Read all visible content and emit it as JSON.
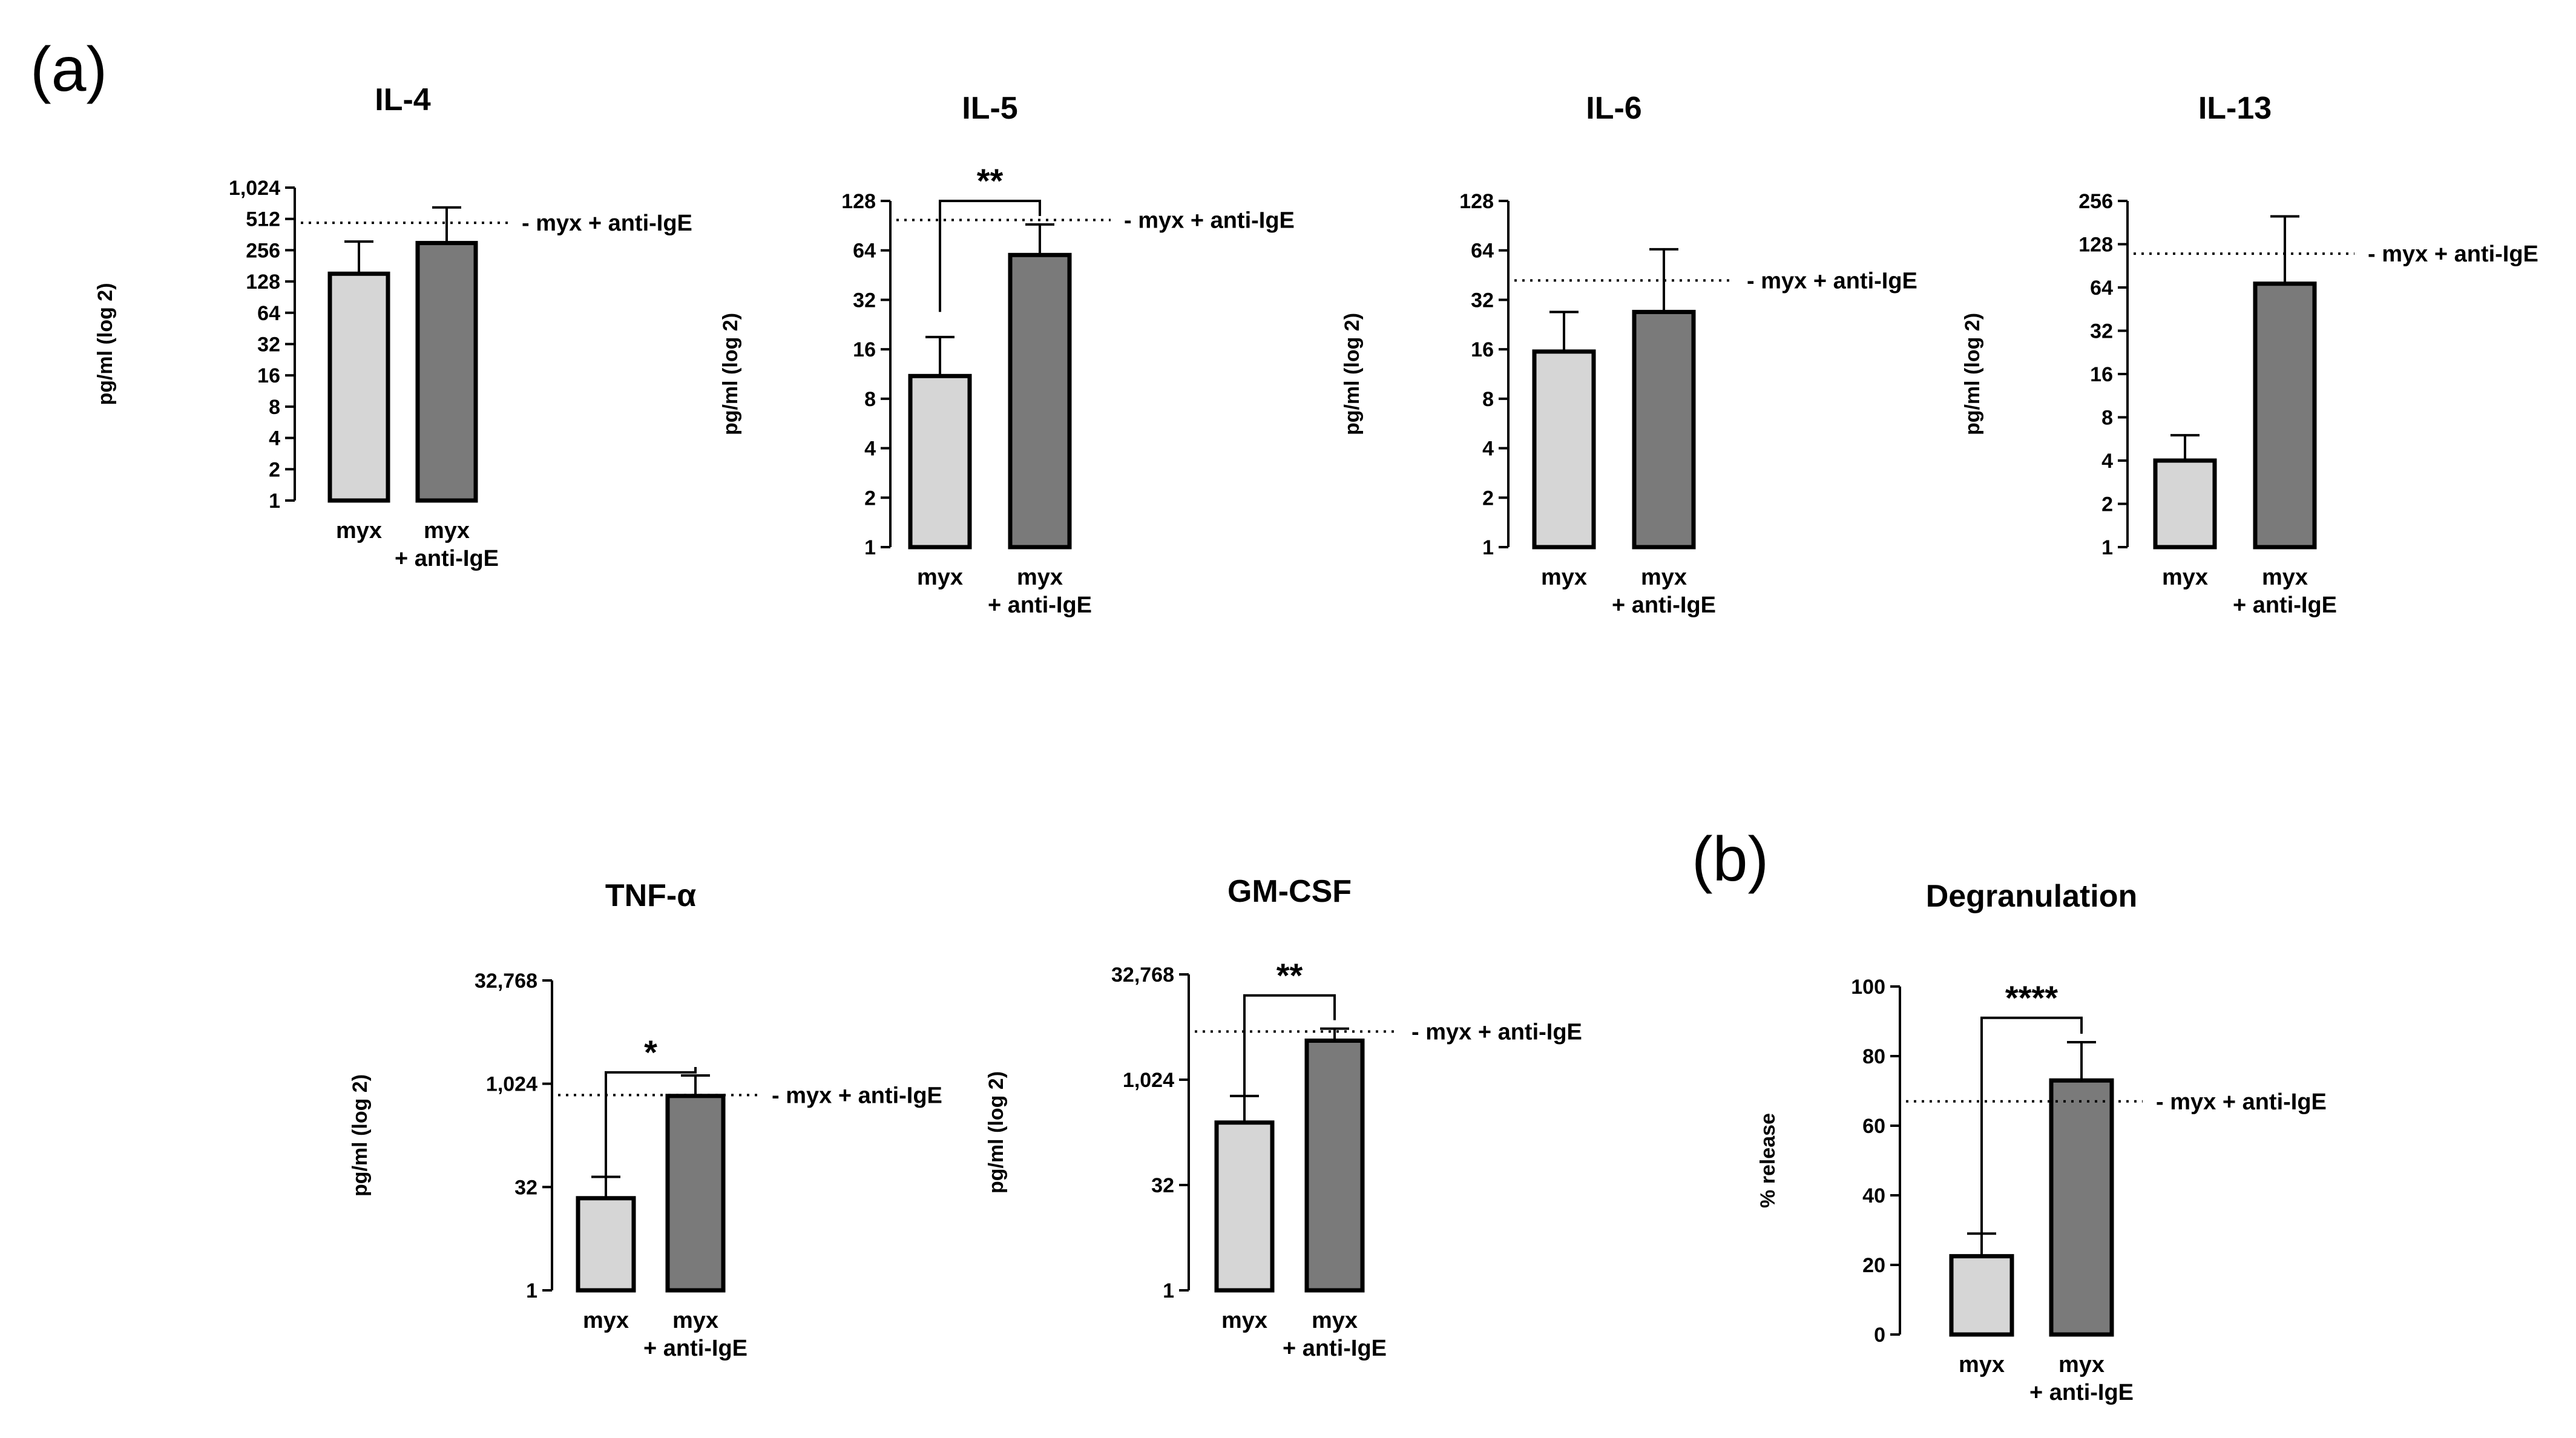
{
  "figure": {
    "panel_a_label": "(a)",
    "panel_b_label": "(b)"
  },
  "colors": {
    "light_bar": "#d6d6d6",
    "dark_bar": "#7a7a7a",
    "axis": "#000000"
  },
  "chart_data": [
    {
      "id": "il4",
      "type": "bar",
      "scale": "log2",
      "title": "IL-4",
      "ylabel": "pg/ml (log 2)",
      "categories": [
        [
          "myx"
        ],
        [
          "myx",
          "+ anti-IgE"
        ]
      ],
      "values": [
        152,
        300
      ],
      "errors": [
        310,
        660
      ],
      "ylim": [
        1,
        1024
      ],
      "ticks": [
        1,
        2,
        4,
        8,
        16,
        32,
        64,
        128,
        256,
        512,
        1024
      ],
      "tick_labels": [
        "1",
        "2",
        "4",
        "8",
        "16",
        "32",
        "64",
        "128",
        "256",
        "512",
        "1,024"
      ],
      "reference": {
        "value": 470,
        "label": "- myx + anti-IgE"
      },
      "significance": null
    },
    {
      "id": "il5",
      "type": "bar",
      "scale": "log2",
      "title": "IL-5",
      "ylabel": "pg/ml (log 2)",
      "categories": [
        [
          "myx"
        ],
        [
          "myx",
          "+ anti-IgE"
        ]
      ],
      "values": [
        11,
        60
      ],
      "errors": [
        19,
        92
      ],
      "ylim": [
        1,
        128
      ],
      "ticks": [
        1,
        2,
        4,
        8,
        16,
        32,
        64,
        128
      ],
      "tick_labels": [
        "1",
        "2",
        "4",
        "8",
        "16",
        "32",
        "64",
        "128"
      ],
      "reference": {
        "value": 98,
        "label": "- myx + anti-IgE"
      },
      "significance": {
        "label": "**",
        "bracket_value": 128,
        "left_base": 24
      }
    },
    {
      "id": "il6",
      "type": "bar",
      "scale": "log2",
      "title": "IL-6",
      "ylabel": "pg/ml (log 2)",
      "categories": [
        [
          "myx"
        ],
        [
          "myx",
          "+ anti-IgE"
        ]
      ],
      "values": [
        15.5,
        27
      ],
      "errors": [
        27,
        65
      ],
      "ylim": [
        1,
        128
      ],
      "ticks": [
        1,
        2,
        4,
        8,
        16,
        32,
        64,
        128
      ],
      "tick_labels": [
        "1",
        "2",
        "4",
        "8",
        "16",
        "32",
        "64",
        "128"
      ],
      "reference": {
        "value": 42,
        "label": "- myx + anti-IgE"
      },
      "significance": null
    },
    {
      "id": "il13",
      "type": "bar",
      "scale": "log2",
      "title": "IL-13",
      "ylabel": "pg/ml (log 2)",
      "categories": [
        [
          "myx"
        ],
        [
          "myx",
          "+ anti-IgE"
        ]
      ],
      "values": [
        4,
        68
      ],
      "errors": [
        6,
        200
      ],
      "ylim": [
        1,
        256
      ],
      "ticks": [
        1,
        2,
        4,
        8,
        16,
        32,
        64,
        128,
        256
      ],
      "tick_labels": [
        "1",
        "2",
        "4",
        "8",
        "16",
        "32",
        "64",
        "128",
        "256"
      ],
      "reference": {
        "value": 110,
        "label": "- myx + anti-IgE"
      },
      "significance": null
    },
    {
      "id": "tnfa",
      "type": "bar",
      "scale": "log2",
      "title": "TNF-α",
      "ylabel": "pg/ml (log 2)",
      "categories": [
        [
          "myx"
        ],
        [
          "myx",
          "+ anti-IgE"
        ]
      ],
      "values": [
        22,
        680
      ],
      "errors": [
        45,
        1350
      ],
      "ylim": [
        1,
        32768
      ],
      "ticks": [
        1,
        32,
        1024,
        32768
      ],
      "tick_labels": [
        "1",
        "32",
        "1,024",
        "32,768"
      ],
      "reference": {
        "value": 700,
        "label": "- myx + anti-IgE"
      },
      "significance": {
        "label": "*",
        "bracket_value": 1500,
        "left_base": 22
      }
    },
    {
      "id": "gmcsf",
      "type": "bar",
      "scale": "log2",
      "title": "GM-CSF",
      "ylabel": "pg/ml (log 2)",
      "categories": [
        [
          "myx"
        ],
        [
          "myx",
          "+ anti-IgE"
        ]
      ],
      "values": [
        250,
        3700
      ],
      "errors": [
        600,
        5500
      ],
      "ylim": [
        1,
        32768
      ],
      "ticks": [
        1,
        32,
        1024,
        32768
      ],
      "tick_labels": [
        "1",
        "32",
        "1,024",
        "32,768"
      ],
      "reference": {
        "value": 5000,
        "label": "- myx + anti-IgE"
      },
      "significance": {
        "label": "**",
        "bracket_value": 16384,
        "left_base": 250
      }
    },
    {
      "id": "degranulation",
      "type": "bar",
      "scale": "linear",
      "title": "Degranulation",
      "ylabel": "% release",
      "categories": [
        [
          "myx"
        ],
        [
          "myx",
          "+ anti-IgE"
        ]
      ],
      "values": [
        22.5,
        73
      ],
      "errors": [
        29,
        84
      ],
      "ylim": [
        0,
        100
      ],
      "ticks": [
        0,
        20,
        40,
        60,
        80,
        100
      ],
      "tick_labels": [
        "0",
        "20",
        "40",
        "60",
        "80",
        "100"
      ],
      "reference": {
        "value": 67,
        "label": "- myx + anti-IgE"
      },
      "significance": {
        "label": "****",
        "bracket_value": 91,
        "left_base": 23
      }
    }
  ]
}
